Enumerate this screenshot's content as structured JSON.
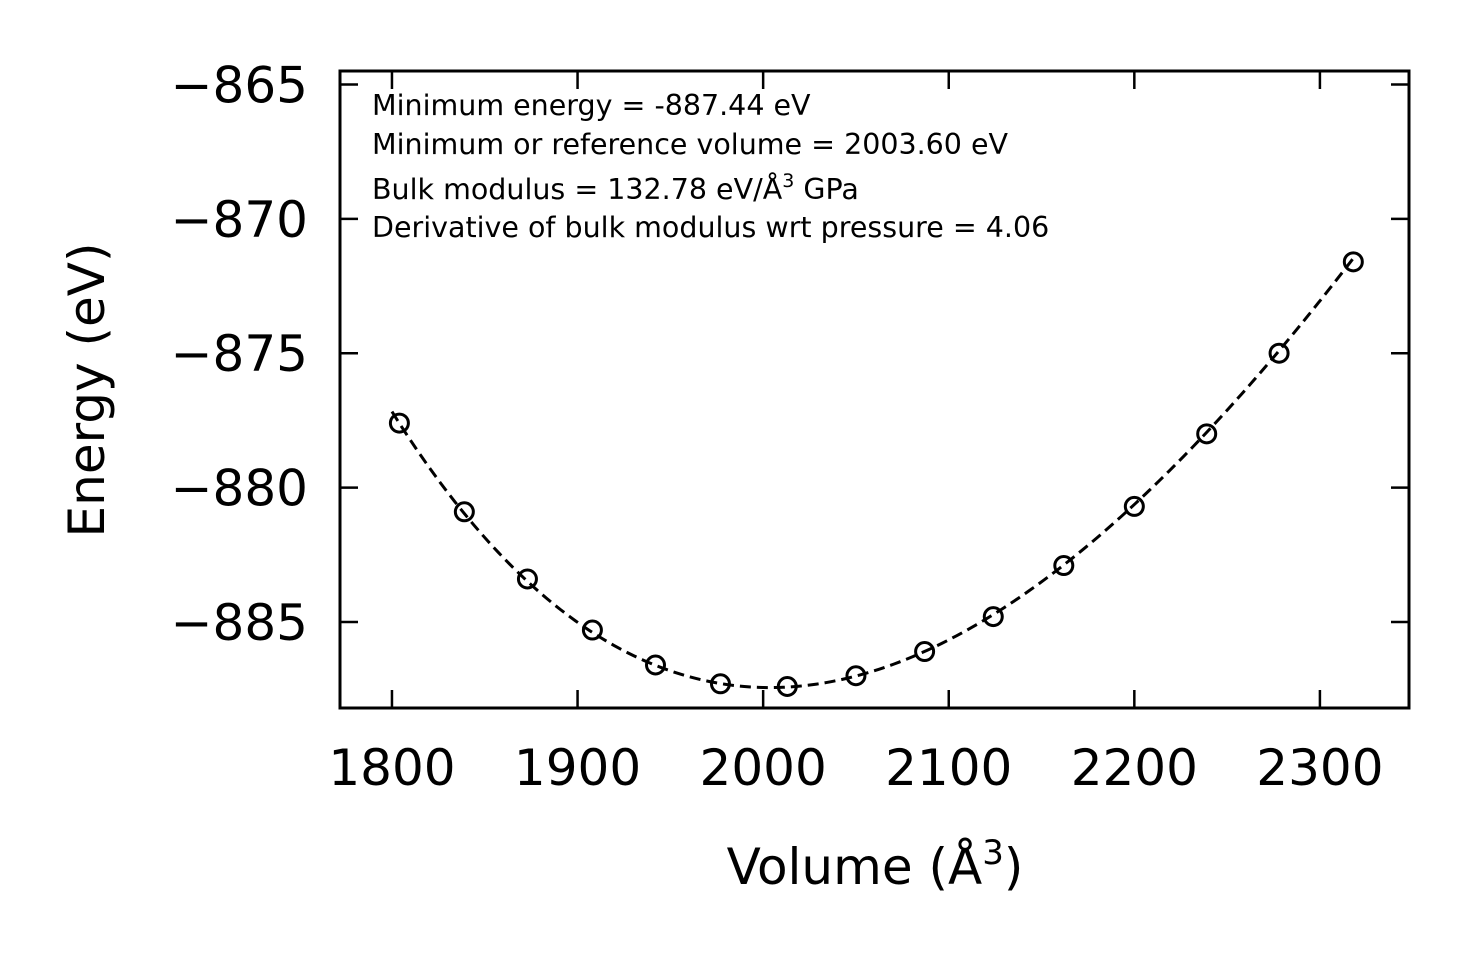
{
  "chart_data": {
    "type": "scatter",
    "title": "",
    "xlabel": "Volume (Å",
    "xlabel_sup": "3",
    "xlabel_end": ")",
    "ylabel": "Energy (eV)",
    "xlim": [
      1772,
      2348
    ],
    "ylim": [
      -888.2,
      -864.5
    ],
    "x_ticks": [
      1800,
      1900,
      2000,
      2100,
      2200,
      2300
    ],
    "y_ticks": [
      -865,
      -870,
      -875,
      -880,
      -885
    ],
    "x_tick_labels": [
      "1800",
      "1900",
      "2000",
      "2100",
      "2200",
      "2300"
    ],
    "y_tick_labels": [
      "−865",
      "−870",
      "−875",
      "−880",
      "−885"
    ],
    "series": [
      {
        "name": "data",
        "style": "open-circle",
        "x": [
          1804,
          1839,
          1873,
          1908,
          1942,
          1977,
          2013,
          2050,
          2087,
          2124,
          2162,
          2200,
          2239,
          2278,
          2318
        ],
        "y": [
          -877.6,
          -880.9,
          -883.4,
          -885.3,
          -886.6,
          -887.3,
          -887.4,
          -887.0,
          -886.1,
          -884.8,
          -882.9,
          -880.7,
          -878.0,
          -875.0,
          -871.6
        ]
      },
      {
        "name": "fit",
        "style": "dashed",
        "fit_params": {
          "E0": -887.44,
          "V0": 2003.6,
          "B_eV_per_A3": 0.8288,
          "Bp": 4.06
        },
        "x_range": [
          1800,
          2320
        ]
      }
    ],
    "annotations": [
      "Minimum energy = -887.44 eV",
      "Minimum or reference volume = 2003.60 eV",
      "Bulk modulus = 132.78 eV/Å",
      "Derivative of bulk modulus wrt pressure = 4.06"
    ],
    "annotation_bulk_sup": "3",
    "annotation_bulk_end": " GPa"
  }
}
